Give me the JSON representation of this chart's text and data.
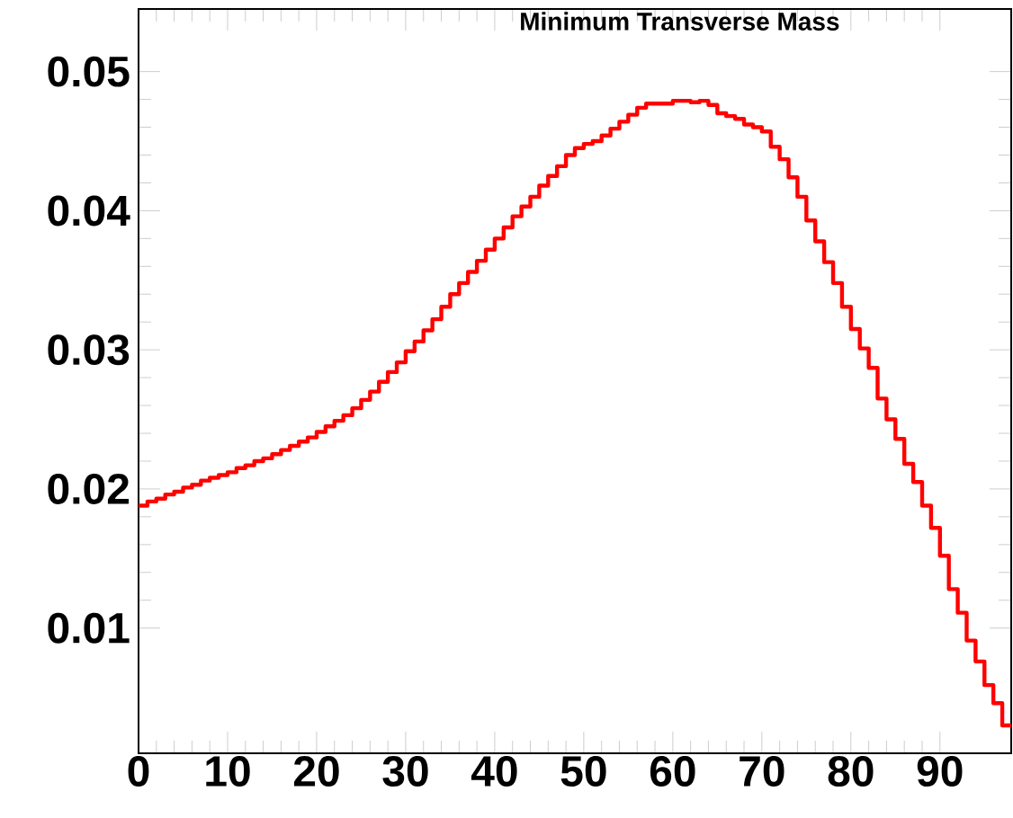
{
  "chart_data": {
    "type": "histogram",
    "title": "Minimum Transverse Mass",
    "bins": [
      0,
      1,
      2,
      3,
      4,
      5,
      6,
      7,
      8,
      9,
      10,
      11,
      12,
      13,
      14,
      15,
      16,
      17,
      18,
      19,
      20,
      21,
      22,
      23,
      24,
      25,
      26,
      27,
      28,
      29,
      30,
      31,
      32,
      33,
      34,
      35,
      36,
      37,
      38,
      39,
      40,
      41,
      42,
      43,
      44,
      45,
      46,
      47,
      48,
      49,
      50,
      51,
      52,
      53,
      54,
      55,
      56,
      57,
      58,
      59,
      60,
      61,
      62,
      63,
      64,
      65,
      66,
      67,
      68,
      69,
      70,
      71,
      72,
      73,
      74,
      75,
      76,
      77,
      78,
      79,
      80,
      81,
      82,
      83,
      84,
      85,
      86,
      87,
      88,
      89,
      90,
      91,
      92,
      93,
      94,
      95,
      96,
      97,
      98
    ],
    "values": [
      0.0188,
      0.0191,
      0.0193,
      0.0196,
      0.0198,
      0.0201,
      0.0203,
      0.0206,
      0.0208,
      0.021,
      0.0212,
      0.0215,
      0.0217,
      0.022,
      0.0222,
      0.0225,
      0.0228,
      0.0231,
      0.0234,
      0.0237,
      0.0241,
      0.0245,
      0.0249,
      0.0253,
      0.0258,
      0.0264,
      0.027,
      0.0277,
      0.0284,
      0.0291,
      0.0299,
      0.0306,
      0.0314,
      0.0322,
      0.0331,
      0.034,
      0.0348,
      0.0356,
      0.0364,
      0.0372,
      0.038,
      0.0388,
      0.0396,
      0.0403,
      0.041,
      0.0418,
      0.0425,
      0.0432,
      0.044,
      0.0445,
      0.0448,
      0.045,
      0.0454,
      0.0459,
      0.0464,
      0.0469,
      0.0474,
      0.0477,
      0.0477,
      0.0477,
      0.0479,
      0.0479,
      0.0478,
      0.0479,
      0.0476,
      0.047,
      0.0468,
      0.0466,
      0.0462,
      0.046,
      0.0457,
      0.0446,
      0.0437,
      0.0424,
      0.041,
      0.0393,
      0.0378,
      0.0363,
      0.0348,
      0.0331,
      0.0315,
      0.0301,
      0.0287,
      0.0265,
      0.025,
      0.0236,
      0.0218,
      0.0205,
      0.0188,
      0.0172,
      0.0152,
      0.0128,
      0.0111,
      0.0091,
      0.0076,
      0.0059,
      0.0046,
      0.003
    ],
    "color": "#ff0000",
    "xlim": [
      0,
      98
    ],
    "ylim": [
      0.001,
      0.0545
    ],
    "xticks": [
      0,
      10,
      20,
      30,
      40,
      50,
      60,
      70,
      80,
      90
    ],
    "yticks": [
      0.01,
      0.02,
      0.03,
      0.04,
      0.05
    ]
  }
}
